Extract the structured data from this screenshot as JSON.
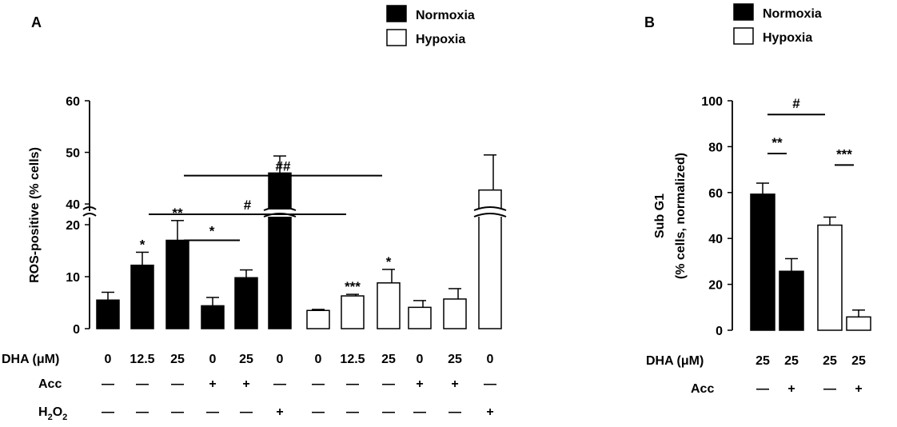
{
  "colors": {
    "normoxia": "#000000",
    "hypoxia": "#ffffff",
    "ink": "#000000"
  },
  "legend": {
    "normoxia": "Normoxia",
    "hypoxia": "Hypoxia"
  },
  "chart_data": [
    {
      "panel": "A",
      "type": "bar",
      "title": "",
      "ylabel": "ROS-positive (% cells)",
      "xlabel": "",
      "ylim": [
        0,
        60
      ],
      "axis_break": [
        22,
        38
      ],
      "yticks": [
        0,
        10,
        20,
        40,
        50,
        60
      ],
      "legend": [
        "Normoxia",
        "Hypoxia"
      ],
      "row_labels": {
        "dha": "DHA (μM)",
        "acc": "Acc",
        "h2o2_main": "H",
        "h2o2_sub1": "2",
        "h2o2_mid": "O",
        "h2o2_sub2": "2"
      },
      "dash": "—",
      "bars": [
        {
          "dha": "0",
          "acc": "—",
          "h2o2": "—",
          "value": 5.5,
          "error": 1.5,
          "group": "Normoxia",
          "sig": ""
        },
        {
          "dha": "12.5",
          "acc": "—",
          "h2o2": "—",
          "value": 12.2,
          "error": 2.5,
          "group": "Normoxia",
          "sig": "*"
        },
        {
          "dha": "25",
          "acc": "—",
          "h2o2": "—",
          "value": 17.0,
          "error": 3.8,
          "group": "Normoxia",
          "sig": "**"
        },
        {
          "dha": "0",
          "acc": "+",
          "h2o2": "—",
          "value": 4.4,
          "error": 1.6,
          "group": "Normoxia",
          "sig": ""
        },
        {
          "dha": "25",
          "acc": "+",
          "h2o2": "—",
          "value": 9.8,
          "error": 1.5,
          "group": "Normoxia",
          "sig": ""
        },
        {
          "dha": "0",
          "acc": "—",
          "h2o2": "+",
          "value": 46.0,
          "error": 3.3,
          "group": "Normoxia",
          "sig": ""
        },
        {
          "dha": "0",
          "acc": "—",
          "h2o2": "—",
          "value": 3.5,
          "error": 0.2,
          "group": "Hypoxia",
          "sig": ""
        },
        {
          "dha": "12.5",
          "acc": "—",
          "h2o2": "—",
          "value": 6.3,
          "error": 0.3,
          "group": "Hypoxia",
          "sig": "***"
        },
        {
          "dha": "25",
          "acc": "—",
          "h2o2": "—",
          "value": 8.8,
          "error": 2.6,
          "group": "Hypoxia",
          "sig": "*"
        },
        {
          "dha": "0",
          "acc": "+",
          "h2o2": "—",
          "value": 4.1,
          "error": 1.3,
          "group": "Hypoxia",
          "sig": ""
        },
        {
          "dha": "25",
          "acc": "+",
          "h2o2": "—",
          "value": 5.7,
          "error": 2.0,
          "group": "Hypoxia",
          "sig": ""
        },
        {
          "dha": "0",
          "acc": "—",
          "h2o2": "+",
          "value": 42.7,
          "error": 6.8,
          "group": "Hypoxia",
          "sig": ""
        }
      ],
      "comparisons": [
        {
          "from": 2,
          "to": 4,
          "label": "*",
          "level": 17
        },
        {
          "from": 1,
          "to": 7,
          "label": "#",
          "level": 38
        },
        {
          "from": 2,
          "to": 8,
          "label": "##",
          "level": 45.5
        }
      ]
    },
    {
      "panel": "B",
      "type": "bar",
      "title": "",
      "ylabel": "Sub G1",
      "ylabel2": "(% cells, normalized)",
      "xlabel": "",
      "ylim": [
        0,
        100
      ],
      "yticks": [
        0,
        20,
        40,
        60,
        80,
        100
      ],
      "legend": [
        "Normoxia",
        "Hypoxia"
      ],
      "row_labels": {
        "dha": "DHA (μM)",
        "acc": "Acc"
      },
      "bars": [
        {
          "dha": "25",
          "acc": "—",
          "value": 59.3,
          "error": 4.8,
          "group": "Normoxia"
        },
        {
          "dha": "25",
          "acc": "+",
          "value": 25.7,
          "error": 5.5,
          "group": "Normoxia"
        },
        {
          "dha": "25",
          "acc": "—",
          "value": 45.8,
          "error": 3.5,
          "group": "Hypoxia"
        },
        {
          "dha": "25",
          "acc": "+",
          "value": 5.8,
          "error": 3.0,
          "group": "Hypoxia"
        }
      ],
      "comparisons": [
        {
          "from": 0,
          "to": 1,
          "label": "**",
          "level": 77
        },
        {
          "from": 2,
          "to": 3,
          "label": "***",
          "level": 72
        },
        {
          "from": 0,
          "to": 2,
          "label": "#",
          "level": 94
        }
      ]
    }
  ]
}
